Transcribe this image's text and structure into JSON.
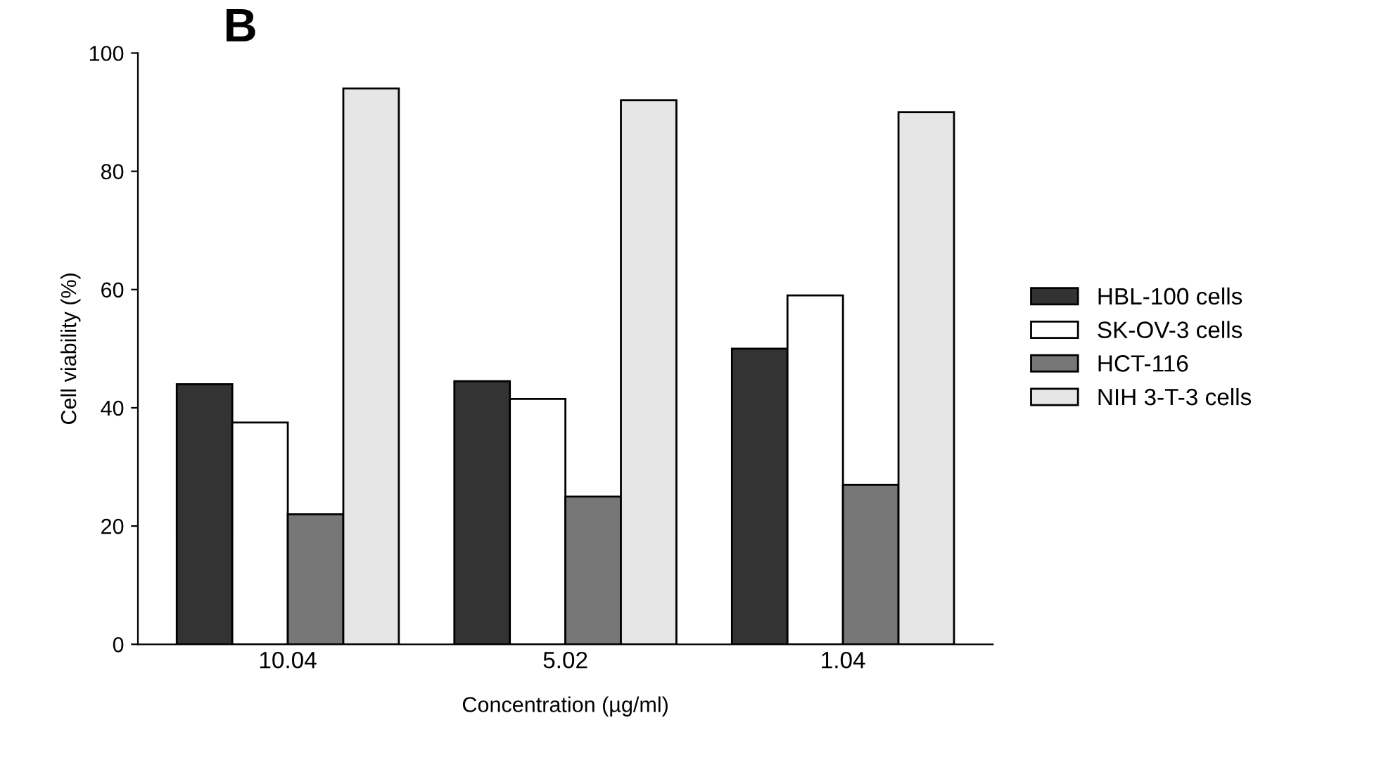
{
  "chart_data": {
    "type": "bar",
    "title": "B",
    "xlabel": "Concentration (µg/ml)",
    "ylabel": "Cell viability (%)",
    "categories": [
      "10.04",
      "5.02",
      "1.04"
    ],
    "series": [
      {
        "name": "HBL-100 cells",
        "color": "#333333",
        "values": [
          44,
          44.5,
          50
        ]
      },
      {
        "name": "SK-OV-3 cells",
        "color": "#ffffff",
        "values": [
          37.5,
          41.5,
          59
        ]
      },
      {
        "name": "HCT-116",
        "color": "#777777",
        "values": [
          22,
          25,
          27
        ]
      },
      {
        "name": "NIH 3-T-3 cells",
        "color": "#e6e6e6",
        "values": [
          94,
          92,
          90
        ]
      }
    ],
    "ylim": [
      0,
      100
    ],
    "yticks": [
      0,
      20,
      40,
      60,
      80,
      100
    ],
    "grid": false,
    "legend": "right"
  }
}
